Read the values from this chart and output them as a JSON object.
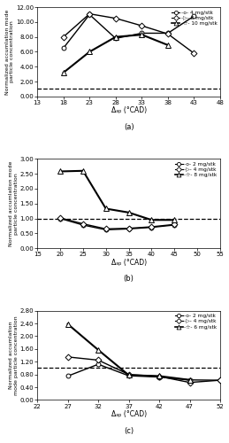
{
  "panel_a": {
    "series": [
      {
        "label": "-o- 4 mg/stk",
        "x": [
          18,
          23,
          28,
          33,
          38,
          43
        ],
        "y": [
          6.5,
          11.0,
          7.8,
          8.5,
          8.5,
          10.8
        ],
        "marker": "o",
        "lw": 1.0
      },
      {
        "label": "-o- 8 mg/stk",
        "x": [
          18,
          23,
          28,
          33,
          38,
          43
        ],
        "y": [
          8.0,
          11.1,
          10.5,
          9.5,
          8.4,
          5.8
        ],
        "marker": "D",
        "lw": 1.0
      },
      {
        "label": "-o- 10 mg/stk",
        "x": [
          18,
          23,
          28,
          33,
          38
        ],
        "y": [
          3.2,
          6.0,
          8.0,
          8.3,
          6.9
        ],
        "marker": "^",
        "lw": 1.5
      }
    ],
    "dashed_y": 1.0,
    "xlim": [
      13,
      48
    ],
    "ylim": [
      0.0,
      12.0
    ],
    "yticks": [
      0.0,
      2.0,
      4.0,
      6.0,
      8.0,
      10.0,
      12.0
    ],
    "ytick_labels": [
      "0.00",
      "2.00",
      "4.00",
      "6.00",
      "8.00",
      "10.00",
      "12.00"
    ],
    "xticks": [
      13,
      18,
      23,
      28,
      33,
      38,
      43,
      48
    ],
    "xtick_labels": [
      "13",
      "18",
      "23",
      "28",
      "33",
      "38",
      "43",
      "48"
    ],
    "xlabel": "Δₐₚ (°CAD)",
    "ylabel": "Normalized accumlation mode\nparticle concentration",
    "sublabel": "(a)",
    "legend_labels": [
      "-o- 4 mg/stk",
      "-▷- 8 mg/stk",
      "-☆- 10 mg/stk"
    ]
  },
  "panel_b": {
    "series": [
      {
        "label": "-o- 2 mg/stk",
        "x": [
          20,
          25,
          30,
          35,
          40,
          45
        ],
        "y": [
          1.0,
          0.78,
          0.62,
          0.65,
          0.7,
          0.78
        ],
        "marker": "o",
        "lw": 1.0
      },
      {
        "label": "-o- 4 mg/stk",
        "x": [
          20,
          25,
          30,
          35,
          40,
          45
        ],
        "y": [
          1.02,
          0.82,
          0.65,
          0.67,
          0.72,
          0.8
        ],
        "marker": "D",
        "lw": 1.0
      },
      {
        "label": "-o- 8 mg/stk",
        "x": [
          20,
          25,
          30,
          35,
          40,
          45
        ],
        "y": [
          2.58,
          2.6,
          1.33,
          1.2,
          0.95,
          0.95
        ],
        "marker": "^",
        "lw": 1.5
      }
    ],
    "dashed_y": 1.0,
    "xlim": [
      15,
      55
    ],
    "ylim": [
      0.0,
      3.0
    ],
    "yticks": [
      0.0,
      0.5,
      1.0,
      1.5,
      2.0,
      2.5,
      3.0
    ],
    "ytick_labels": [
      "0.00",
      "0.50",
      "1.00",
      "1.50",
      "2.00",
      "2.50",
      "3.00"
    ],
    "xticks": [
      15,
      20,
      25,
      30,
      35,
      40,
      45,
      50,
      55
    ],
    "xtick_labels": [
      "15",
      "20",
      "25",
      "30",
      "35",
      "40",
      "45",
      "50",
      "55"
    ],
    "xlabel": "Δₐₚ (°CAD)",
    "ylabel": "Normalized accumlation mode\nparticle concentration",
    "sublabel": "(b)",
    "legend_labels": [
      "-o- 2 mg/stk",
      "-▷- 4 mg/stk",
      "-☆- 8 mg/stk"
    ]
  },
  "panel_c": {
    "series": [
      {
        "label": "-o- 2 mg/stk",
        "x": [
          27,
          32,
          37,
          42,
          47,
          52
        ],
        "y": [
          0.75,
          1.12,
          0.76,
          0.72,
          0.63,
          0.62
        ],
        "marker": "o",
        "lw": 1.0
      },
      {
        "label": "-o- 4 mg/stk",
        "x": [
          27,
          32,
          37,
          42,
          47,
          52
        ],
        "y": [
          1.35,
          1.25,
          0.8,
          0.74,
          0.55,
          0.62
        ],
        "marker": "D",
        "lw": 1.0
      },
      {
        "label": "-o- 6 mg/stk",
        "x": [
          27,
          32,
          37,
          42,
          47
        ],
        "y": [
          2.38,
          1.57,
          0.78,
          0.75,
          0.63
        ],
        "marker": "^",
        "lw": 1.5
      }
    ],
    "dashed_y": 1.0,
    "xlim": [
      22,
      52
    ],
    "ylim": [
      0.0,
      2.8
    ],
    "yticks": [
      0.0,
      0.4,
      0.8,
      1.2,
      1.6,
      2.0,
      2.4,
      2.8
    ],
    "ytick_labels": [
      "0.00",
      "0.40",
      "0.80",
      "1.20",
      "1.60",
      "2.00",
      "2.40",
      "2.80"
    ],
    "xticks": [
      22,
      27,
      32,
      37,
      42,
      47,
      52
    ],
    "xtick_labels": [
      "22",
      "27",
      "32",
      "37",
      "42",
      "47",
      "52"
    ],
    "xlabel": "Δₐₚ (°CAD)",
    "ylabel": "Normalized accumlation\nmode particle concentration",
    "sublabel": "(c)",
    "legend_labels": [
      "-o- 2 mg/stk",
      "-▷- 4 mg/stk",
      "-☆- 6 mg/stk"
    ]
  }
}
